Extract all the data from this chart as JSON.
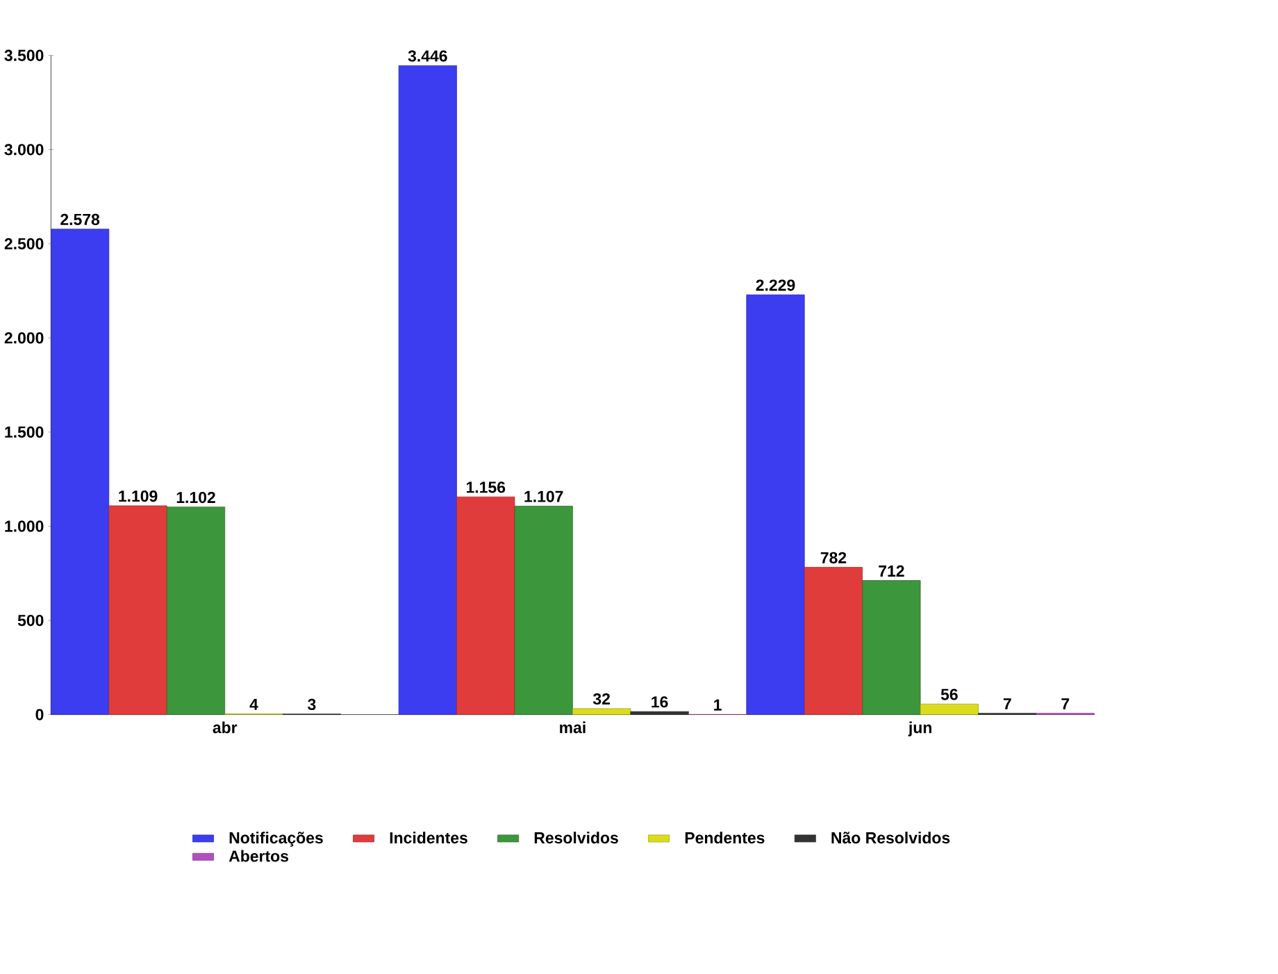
{
  "chart_data": {
    "type": "bar",
    "categories": [
      "abr",
      "mai",
      "jun"
    ],
    "series": [
      {
        "name": "Notificações",
        "color": "#3c3cf0",
        "values": [
          2578,
          3446,
          2229
        ],
        "value_labels": [
          "2.578",
          "3.446",
          "2.229"
        ]
      },
      {
        "name": "Incidentes",
        "color": "#e03c3c",
        "values": [
          1109,
          1156,
          782
        ],
        "value_labels": [
          "1.109",
          "1.156",
          "782"
        ]
      },
      {
        "name": "Resolvidos",
        "color": "#3c963c",
        "values": [
          1102,
          1107,
          712
        ],
        "value_labels": [
          "1.102",
          "1.107",
          "712"
        ]
      },
      {
        "name": "Pendentes",
        "color": "#dcdc1e",
        "values": [
          4,
          32,
          56
        ],
        "value_labels": [
          "4",
          "32",
          "56"
        ]
      },
      {
        "name": "Não Resolvidos",
        "color": "#333333",
        "values": [
          3,
          16,
          7
        ],
        "value_labels": [
          "3",
          "16",
          "7"
        ]
      },
      {
        "name": "Abertos",
        "color": "#b050c0",
        "values": [
          null,
          1,
          7
        ],
        "value_labels": [
          null,
          "1",
          "7"
        ]
      }
    ],
    "ylim": [
      0,
      3500
    ],
    "yticks": [
      0,
      500,
      {
        "value": 1000,
        "label": "1.000"
      },
      {
        "value": 1500,
        "label": "1.500"
      },
      {
        "value": 2000,
        "label": "2.000"
      },
      {
        "value": 2500,
        "label": "2.500"
      },
      {
        "value": 3000,
        "label": "3.000"
      },
      {
        "value": 3500,
        "label": "3.500"
      }
    ],
    "grid": false,
    "legend": "bottom"
  }
}
